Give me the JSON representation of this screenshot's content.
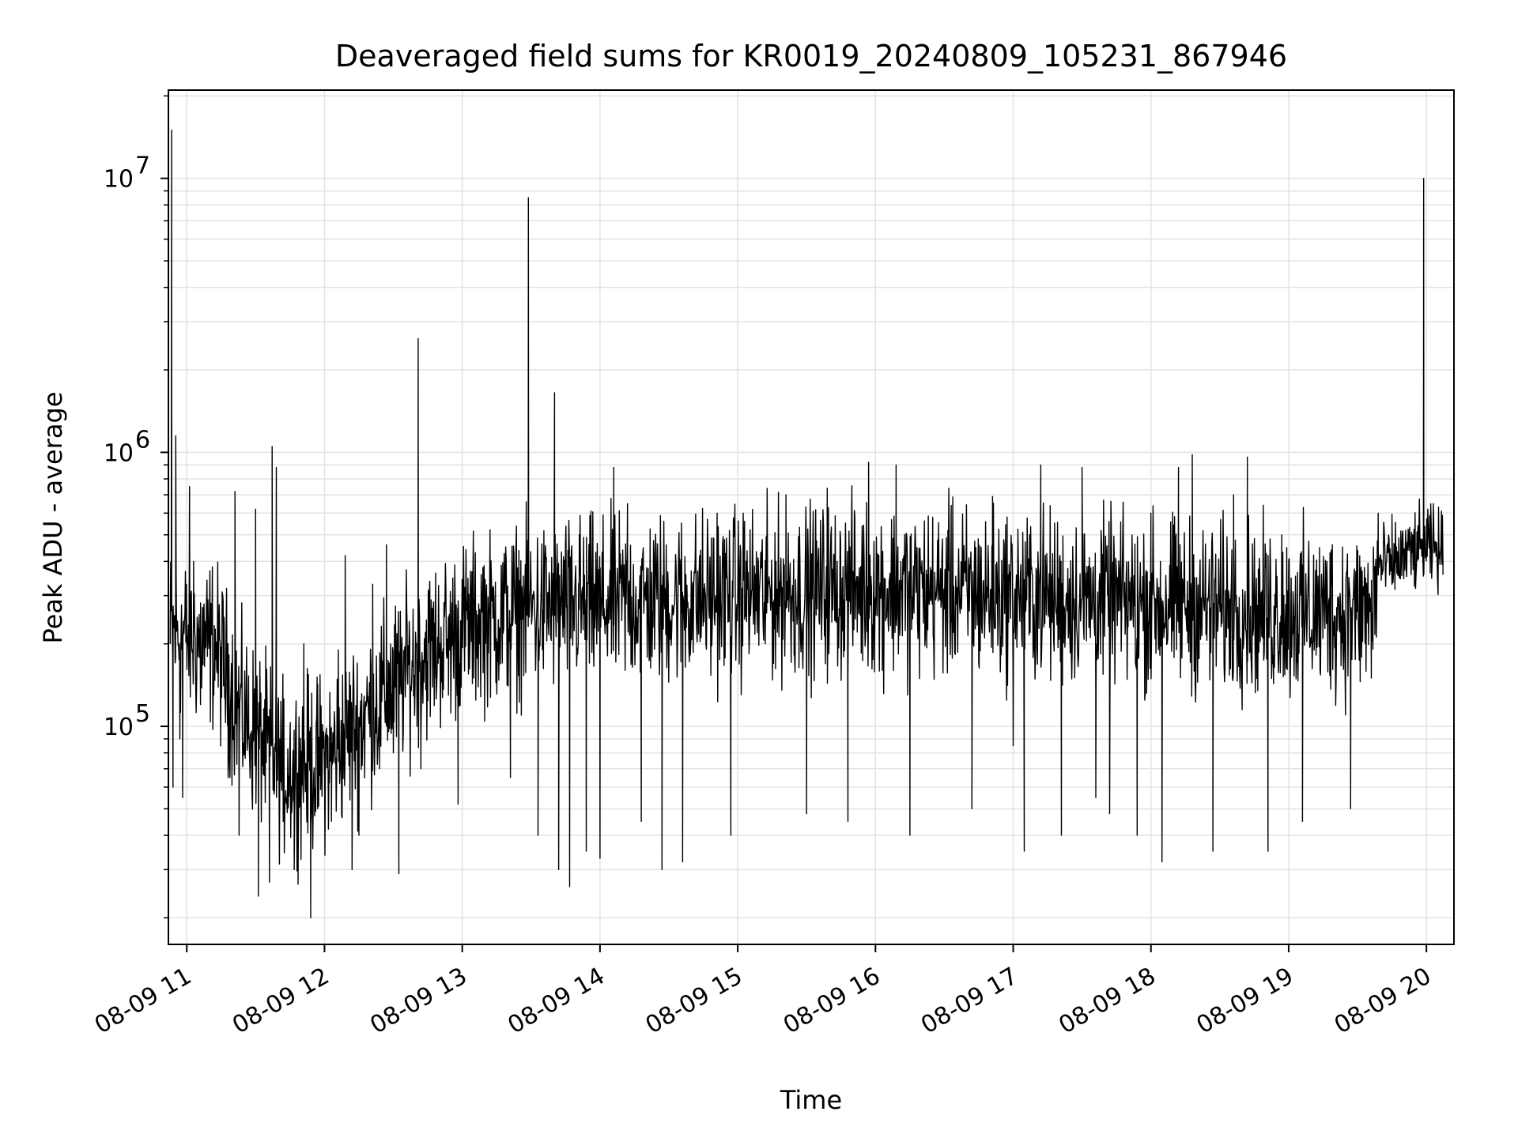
{
  "chart_data": {
    "type": "line",
    "title": "Deaveraged field sums for KR0019_20240809_105231_867946",
    "xlabel": "Time",
    "ylabel": "Peak ADU - average",
    "yscale": "log",
    "ylim": [
      16000,
      21000000
    ],
    "xlim": [
      "08-09 10:52",
      "08-09 20:12"
    ],
    "grid": true,
    "legend": "none",
    "line_color": "#000000",
    "x_ticks": [
      "08-09 11",
      "08-09 12",
      "08-09 13",
      "08-09 14",
      "08-09 15",
      "08-09 16",
      "08-09 17",
      "08-09 18",
      "08-09 19",
      "08-09 20"
    ],
    "y_ticks": [
      {
        "value": 100000,
        "base": "10",
        "exp": "5"
      },
      {
        "value": 1000000,
        "base": "10",
        "exp": "6"
      },
      {
        "value": 10000000,
        "base": "10",
        "exp": "7"
      }
    ],
    "series": [
      {
        "x_unit": "hour of day",
        "points": [
          [
            10.88,
            200000
          ],
          [
            10.89,
            15000000
          ],
          [
            10.9,
            60000
          ],
          [
            10.92,
            1150000
          ],
          [
            10.95,
            90000
          ],
          [
            10.97,
            55000
          ],
          [
            11.02,
            750000
          ],
          [
            11.05,
            400000
          ],
          [
            11.1,
            120000
          ],
          [
            11.15,
            180000
          ],
          [
            11.2,
            220000
          ],
          [
            11.27,
            250000
          ],
          [
            11.3,
            65000
          ],
          [
            11.35,
            720000
          ],
          [
            11.38,
            40000
          ],
          [
            11.45,
            90000
          ],
          [
            11.5,
            620000
          ],
          [
            11.52,
            24000
          ],
          [
            11.6,
            27000
          ],
          [
            11.62,
            1050000
          ],
          [
            11.65,
            880000
          ],
          [
            11.7,
            45000
          ],
          [
            11.78,
            30000
          ],
          [
            11.85,
            200000
          ],
          [
            11.9,
            20000
          ],
          [
            11.95,
            50000
          ],
          [
            12.0,
            80000
          ],
          [
            12.05,
            45000
          ],
          [
            12.1,
            190000
          ],
          [
            12.15,
            420000
          ],
          [
            12.2,
            30000
          ],
          [
            12.25,
            40000
          ],
          [
            12.35,
            330000
          ],
          [
            12.4,
            70000
          ],
          [
            12.45,
            460000
          ],
          [
            12.5,
            80000
          ],
          [
            12.54,
            29000
          ],
          [
            12.6,
            230000
          ],
          [
            12.68,
            2600000
          ],
          [
            12.7,
            70000
          ],
          [
            12.8,
            150000
          ],
          [
            12.9,
            130000
          ],
          [
            12.97,
            52000
          ],
          [
            13.05,
            200000
          ],
          [
            13.15,
            380000
          ],
          [
            13.25,
            150000
          ],
          [
            13.35,
            65000
          ],
          [
            13.45,
            280000
          ],
          [
            13.48,
            8500000
          ],
          [
            13.55,
            40000
          ],
          [
            13.63,
            350000
          ],
          [
            13.67,
            1650000
          ],
          [
            13.7,
            30000
          ],
          [
            13.78,
            26000
          ],
          [
            13.85,
            500000
          ],
          [
            13.9,
            35000
          ],
          [
            14.0,
            33000
          ],
          [
            14.1,
            880000
          ],
          [
            14.2,
            650000
          ],
          [
            14.3,
            45000
          ],
          [
            14.45,
            30000
          ],
          [
            14.6,
            32000
          ],
          [
            14.75,
            250000
          ],
          [
            14.85,
            600000
          ],
          [
            14.95,
            40000
          ],
          [
            15.05,
            560000
          ],
          [
            15.2,
            200000
          ],
          [
            15.35,
            700000
          ],
          [
            15.5,
            48000
          ],
          [
            15.65,
            740000
          ],
          [
            15.8,
            45000
          ],
          [
            15.95,
            920000
          ],
          [
            16.05,
            160000
          ],
          [
            16.15,
            900000
          ],
          [
            16.25,
            40000
          ],
          [
            16.4,
            380000
          ],
          [
            16.55,
            640000
          ],
          [
            16.7,
            50000
          ],
          [
            16.85,
            690000
          ],
          [
            17.0,
            85000
          ],
          [
            17.08,
            35000
          ],
          [
            17.2,
            900000
          ],
          [
            17.35,
            40000
          ],
          [
            17.5,
            880000
          ],
          [
            17.6,
            55000
          ],
          [
            17.7,
            48000
          ],
          [
            17.82,
            350000
          ],
          [
            17.9,
            40000
          ],
          [
            18.0,
            600000
          ],
          [
            18.08,
            32000
          ],
          [
            18.2,
            880000
          ],
          [
            18.3,
            980000
          ],
          [
            18.45,
            35000
          ],
          [
            18.6,
            700000
          ],
          [
            18.7,
            960000
          ],
          [
            18.85,
            35000
          ],
          [
            18.95,
            500000
          ],
          [
            19.1,
            45000
          ],
          [
            19.3,
            430000
          ],
          [
            19.45,
            50000
          ],
          [
            19.55,
            380000
          ],
          [
            19.6,
            150000
          ],
          [
            19.65,
            600000
          ],
          [
            19.75,
            330000
          ],
          [
            19.9,
            500000
          ],
          [
            19.98,
            10000000
          ],
          [
            20.05,
            650000
          ],
          [
            20.12,
            400000
          ]
        ]
      }
    ]
  }
}
